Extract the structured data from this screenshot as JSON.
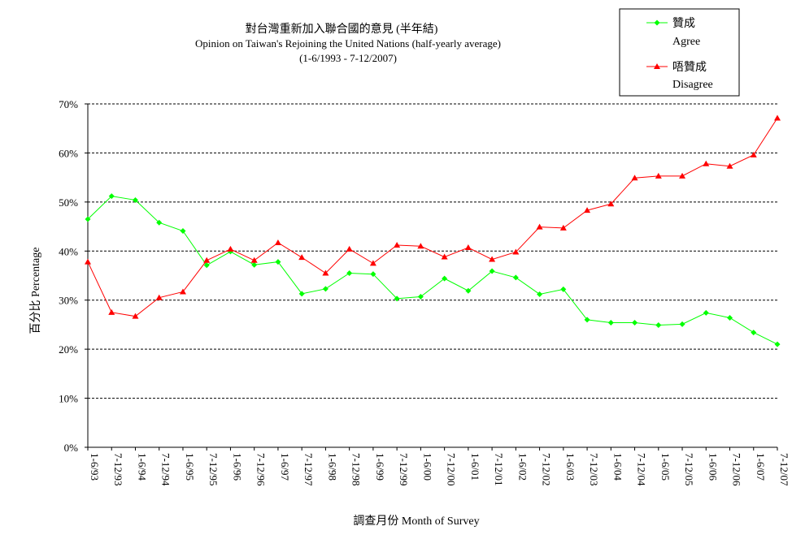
{
  "chart_data": {
    "type": "line",
    "title": "對台灣重新加入聯合國的意見 (半年結)",
    "subtitle": "Opinion on Taiwan's Rejoining the United Nations  (half-yearly average)",
    "period": "(1-6/1993 - 7-12/2007)",
    "xlabel": "調查月份 Month of Survey",
    "ylabel": "百分比 Percentage",
    "ylim": [
      0,
      70
    ],
    "yticks": [
      "0%",
      "10%",
      "20%",
      "30%",
      "40%",
      "50%",
      "60%",
      "70%"
    ],
    "grid": true,
    "legend_position": "top-right",
    "categories": [
      "1-6/93",
      "7-12/93",
      "1-6/94",
      "7-12/94",
      "1-6/95",
      "7-12/95",
      "1-6/96",
      "7-12/96",
      "1-6/97",
      "7-12/97",
      "1-6/98",
      "7-12/98",
      "1-6/99",
      "7-12/99",
      "1-6/00",
      "7-12/00",
      "1-6/01",
      "7-12/01",
      "1-6/02",
      "7-12/02",
      "1-6/03",
      "7-12/03",
      "1-6/04",
      "7-12/04",
      "1-6/05",
      "7-12/05",
      "1-6/06",
      "7-12/06",
      "1-6/07",
      "7-12/07"
    ],
    "series": [
      {
        "name": "贊成",
        "name_en": "Agree",
        "color": "#00ff00",
        "marker": "diamond",
        "values": [
          46.5,
          51.2,
          50.4,
          45.8,
          44.1,
          37.1,
          39.9,
          37.2,
          37.8,
          31.3,
          32.3,
          35.5,
          35.3,
          30.3,
          30.7,
          34.4,
          31.9,
          35.9,
          34.6,
          31.2,
          32.2,
          26.0,
          25.4,
          25.4,
          24.9,
          25.1,
          27.4,
          26.4,
          23.4,
          21.0
        ]
      },
      {
        "name": "唔贊成",
        "name_en": "Disagree",
        "color": "#ff0000",
        "marker": "triangle",
        "values": [
          37.8,
          27.5,
          26.7,
          30.5,
          31.7,
          38.1,
          40.4,
          38.1,
          41.7,
          38.7,
          35.5,
          40.4,
          37.5,
          41.2,
          41.0,
          38.8,
          40.7,
          38.3,
          39.8,
          44.9,
          44.7,
          48.3,
          49.6,
          54.9,
          55.3,
          55.3,
          57.8,
          57.3,
          59.6,
          67.1
        ]
      }
    ]
  }
}
